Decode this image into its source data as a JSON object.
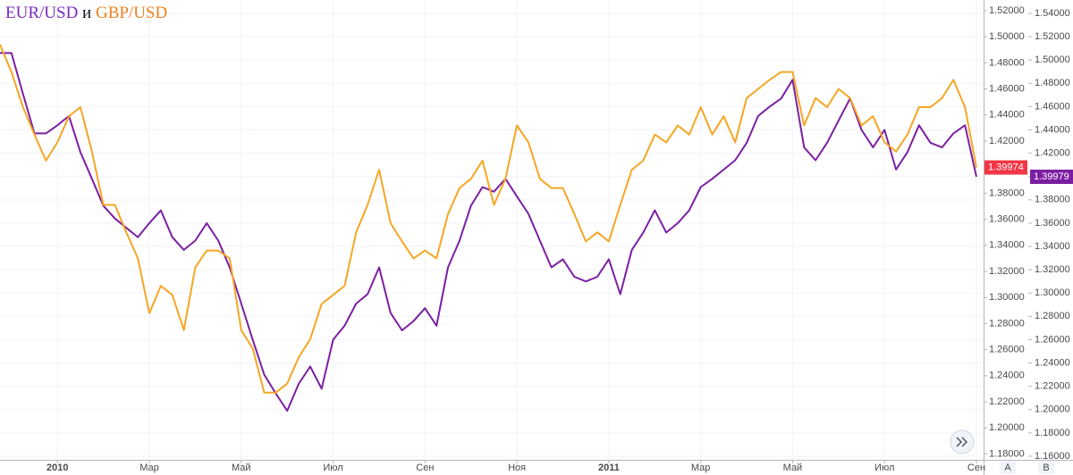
{
  "chart_data": {
    "type": "line",
    "title_joiner": "и",
    "categories": [
      null,
      null,
      null,
      null,
      null,
      "2010",
      null,
      null,
      null,
      null,
      null,
      null,
      null,
      "Мар",
      null,
      null,
      null,
      null,
      null,
      null,
      null,
      "Май",
      null,
      null,
      null,
      null,
      null,
      null,
      null,
      "Июл",
      null,
      null,
      null,
      null,
      null,
      null,
      null,
      "Сен",
      null,
      null,
      null,
      null,
      null,
      null,
      null,
      "Ноя",
      null,
      null,
      null,
      null,
      null,
      null,
      null,
      "2011",
      null,
      null,
      null,
      null,
      null,
      null,
      null,
      "Мар",
      null,
      null,
      null,
      null,
      null,
      null,
      null,
      "Май",
      null,
      null,
      null,
      null,
      null,
      null,
      null,
      "Июл",
      null,
      null,
      null,
      null,
      null,
      null,
      null,
      "Сен"
    ],
    "series": [
      {
        "name": "EUR/USD",
        "color": "#7b1fa2",
        "title_color": "#7b2cbf",
        "last_label": "1.39979",
        "values": [
          1.506,
          1.506,
          1.471,
          1.437,
          1.437,
          1.444,
          1.452,
          1.421,
          1.398,
          1.375,
          1.364,
          1.356,
          1.348,
          1.36,
          1.371,
          1.348,
          1.337,
          1.345,
          1.36,
          1.345,
          1.322,
          1.291,
          1.26,
          1.23,
          1.214,
          1.199,
          1.222,
          1.237,
          1.218,
          1.26,
          1.272,
          1.291,
          1.299,
          1.322,
          1.283,
          1.268,
          1.276,
          1.287,
          1.272,
          1.322,
          1.345,
          1.375,
          1.391,
          1.387,
          1.398,
          1.383,
          1.368,
          1.345,
          1.322,
          1.329,
          1.314,
          1.31,
          1.314,
          1.329,
          1.299,
          1.337,
          1.352,
          1.371,
          1.352,
          1.36,
          1.371,
          1.391,
          1.398,
          1.406,
          1.414,
          1.429,
          1.452,
          1.46,
          1.467,
          1.483,
          1.425,
          1.414,
          1.429,
          1.448,
          1.467,
          1.44,
          1.425,
          1.44,
          1.406,
          1.421,
          1.444,
          1.429,
          1.425,
          1.437,
          1.444,
          1.39979
        ]
      },
      {
        "name": "GBP/USD",
        "color": "#f5a623",
        "title_color": "#f07f1d",
        "axis": "y2",
        "last_label": "1.39974",
        "last_label_color": "#f23645",
        "values": [
          1.494,
          1.473,
          1.446,
          1.425,
          1.405,
          1.419,
          1.439,
          1.446,
          1.412,
          1.371,
          1.371,
          1.35,
          1.33,
          1.288,
          1.309,
          1.302,
          1.275,
          1.323,
          1.336,
          1.336,
          1.33,
          1.275,
          1.261,
          1.227,
          1.227,
          1.234,
          1.254,
          1.268,
          1.295,
          1.302,
          1.309,
          1.35,
          1.371,
          1.398,
          1.357,
          1.343,
          1.33,
          1.336,
          1.33,
          1.364,
          1.384,
          1.391,
          1.405,
          1.371,
          1.391,
          1.432,
          1.419,
          1.391,
          1.384,
          1.384,
          1.364,
          1.343,
          1.35,
          1.343,
          1.371,
          1.398,
          1.405,
          1.425,
          1.419,
          1.432,
          1.425,
          1.446,
          1.425,
          1.439,
          1.419,
          1.453,
          1.46,
          1.467,
          1.473,
          1.473,
          1.432,
          1.453,
          1.446,
          1.46,
          1.453,
          1.432,
          1.439,
          1.419,
          1.412,
          1.425,
          1.446,
          1.446,
          1.453,
          1.467,
          1.446,
          1.39974
        ]
      }
    ],
    "ylim": [
      1.1569,
      1.5515
    ],
    "yticks": [
      {
        "value": 1.16,
        "label": "1.16000"
      },
      {
        "value": 1.18,
        "label": "1.18000"
      },
      {
        "value": 1.2,
        "label": "1.20000"
      },
      {
        "value": 1.22,
        "label": "1.22000"
      },
      {
        "value": 1.24,
        "label": "1.24000"
      },
      {
        "value": 1.26,
        "label": "1.26000"
      },
      {
        "value": 1.28,
        "label": "1.28000"
      },
      {
        "value": 1.3,
        "label": "1.30000"
      },
      {
        "value": 1.32,
        "label": "1.32000"
      },
      {
        "value": 1.34,
        "label": "1.34000"
      },
      {
        "value": 1.36,
        "label": "1.36000"
      },
      {
        "value": 1.38,
        "label": "1.38000"
      },
      {
        "value": 1.4,
        "label": "1.40000"
      },
      {
        "value": 1.42,
        "label": "1.42000"
      },
      {
        "value": 1.44,
        "label": "1.44000"
      },
      {
        "value": 1.46,
        "label": "1.46000"
      },
      {
        "value": 1.48,
        "label": "1.48000"
      },
      {
        "value": 1.5,
        "label": "1.50000"
      },
      {
        "value": 1.52,
        "label": "1.52000"
      },
      {
        "value": 1.54,
        "label": "1.54000"
      }
    ],
    "y2lim": [
      1.1755,
      1.5282
    ],
    "y2ticks": [
      {
        "value": 1.18,
        "label": "1.18000"
      },
      {
        "value": 1.2,
        "label": "1.20000"
      },
      {
        "value": 1.22,
        "label": "1.22000"
      },
      {
        "value": 1.24,
        "label": "1.24000"
      },
      {
        "value": 1.26,
        "label": "1.26000"
      },
      {
        "value": 1.28,
        "label": "1.28000"
      },
      {
        "value": 1.3,
        "label": "1.30000"
      },
      {
        "value": 1.32,
        "label": "1.32000"
      },
      {
        "value": 1.34,
        "label": "1.34000"
      },
      {
        "value": 1.36,
        "label": "1.36000"
      },
      {
        "value": 1.38,
        "label": "1.38000"
      },
      {
        "value": 1.4,
        "label": "1.40000"
      },
      {
        "value": 1.42,
        "label": "1.42000"
      },
      {
        "value": 1.44,
        "label": "1.44000"
      },
      {
        "value": 1.46,
        "label": "1.46000"
      },
      {
        "value": 1.48,
        "label": "1.48000"
      },
      {
        "value": 1.5,
        "label": "1.50000"
      },
      {
        "value": 1.52,
        "label": "1.52000"
      }
    ],
    "grid": true,
    "scale_buttons": [
      "A",
      "B"
    ]
  }
}
